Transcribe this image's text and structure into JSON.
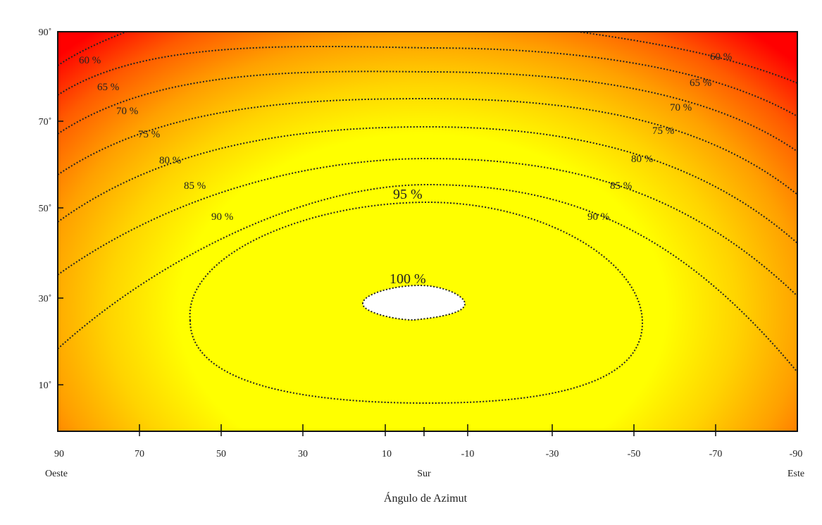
{
  "chart_data": {
    "type": "heatmap",
    "title": "",
    "xlabel": "Ángulo de Azimut",
    "ylabel": "",
    "xlim": [
      90,
      -90
    ],
    "ylim": [
      0,
      90
    ],
    "x_ticks": [
      90,
      70,
      50,
      30,
      10,
      -10,
      -30,
      -50,
      -70,
      -90
    ],
    "x_tick_labels": [
      "90",
      "70",
      "50",
      "30",
      "10",
      "-10",
      "-30",
      "-50",
      "-70",
      "-90"
    ],
    "x_annotations": [
      {
        "x": 90,
        "label": "Oeste"
      },
      {
        "x": 0,
        "label": "Sur"
      },
      {
        "x": -90,
        "label": "Este"
      }
    ],
    "y_ticks": [
      90,
      70,
      50,
      30,
      10
    ],
    "y_tick_labels": [
      "90˚",
      "70˚",
      "50˚",
      "30˚",
      "10˚"
    ],
    "grid": false,
    "colors": {
      "low": "#ff1a00",
      "mid": "#ffa500",
      "high": "#ffff00",
      "max": "#ffffff"
    },
    "contours": [
      {
        "level": 100,
        "label": "100 %",
        "center": [
          5,
          28
        ]
      },
      {
        "level": 95,
        "label": "95 %"
      },
      {
        "level": 90,
        "label": "90 %"
      },
      {
        "level": 85,
        "label": "85 %"
      },
      {
        "level": 80,
        "label": "80 %"
      },
      {
        "level": 75,
        "label": "75 %"
      },
      {
        "level": 70,
        "label": "70 %"
      },
      {
        "level": 65,
        "label": "65 %"
      },
      {
        "level": 60,
        "label": "60 %"
      }
    ]
  }
}
